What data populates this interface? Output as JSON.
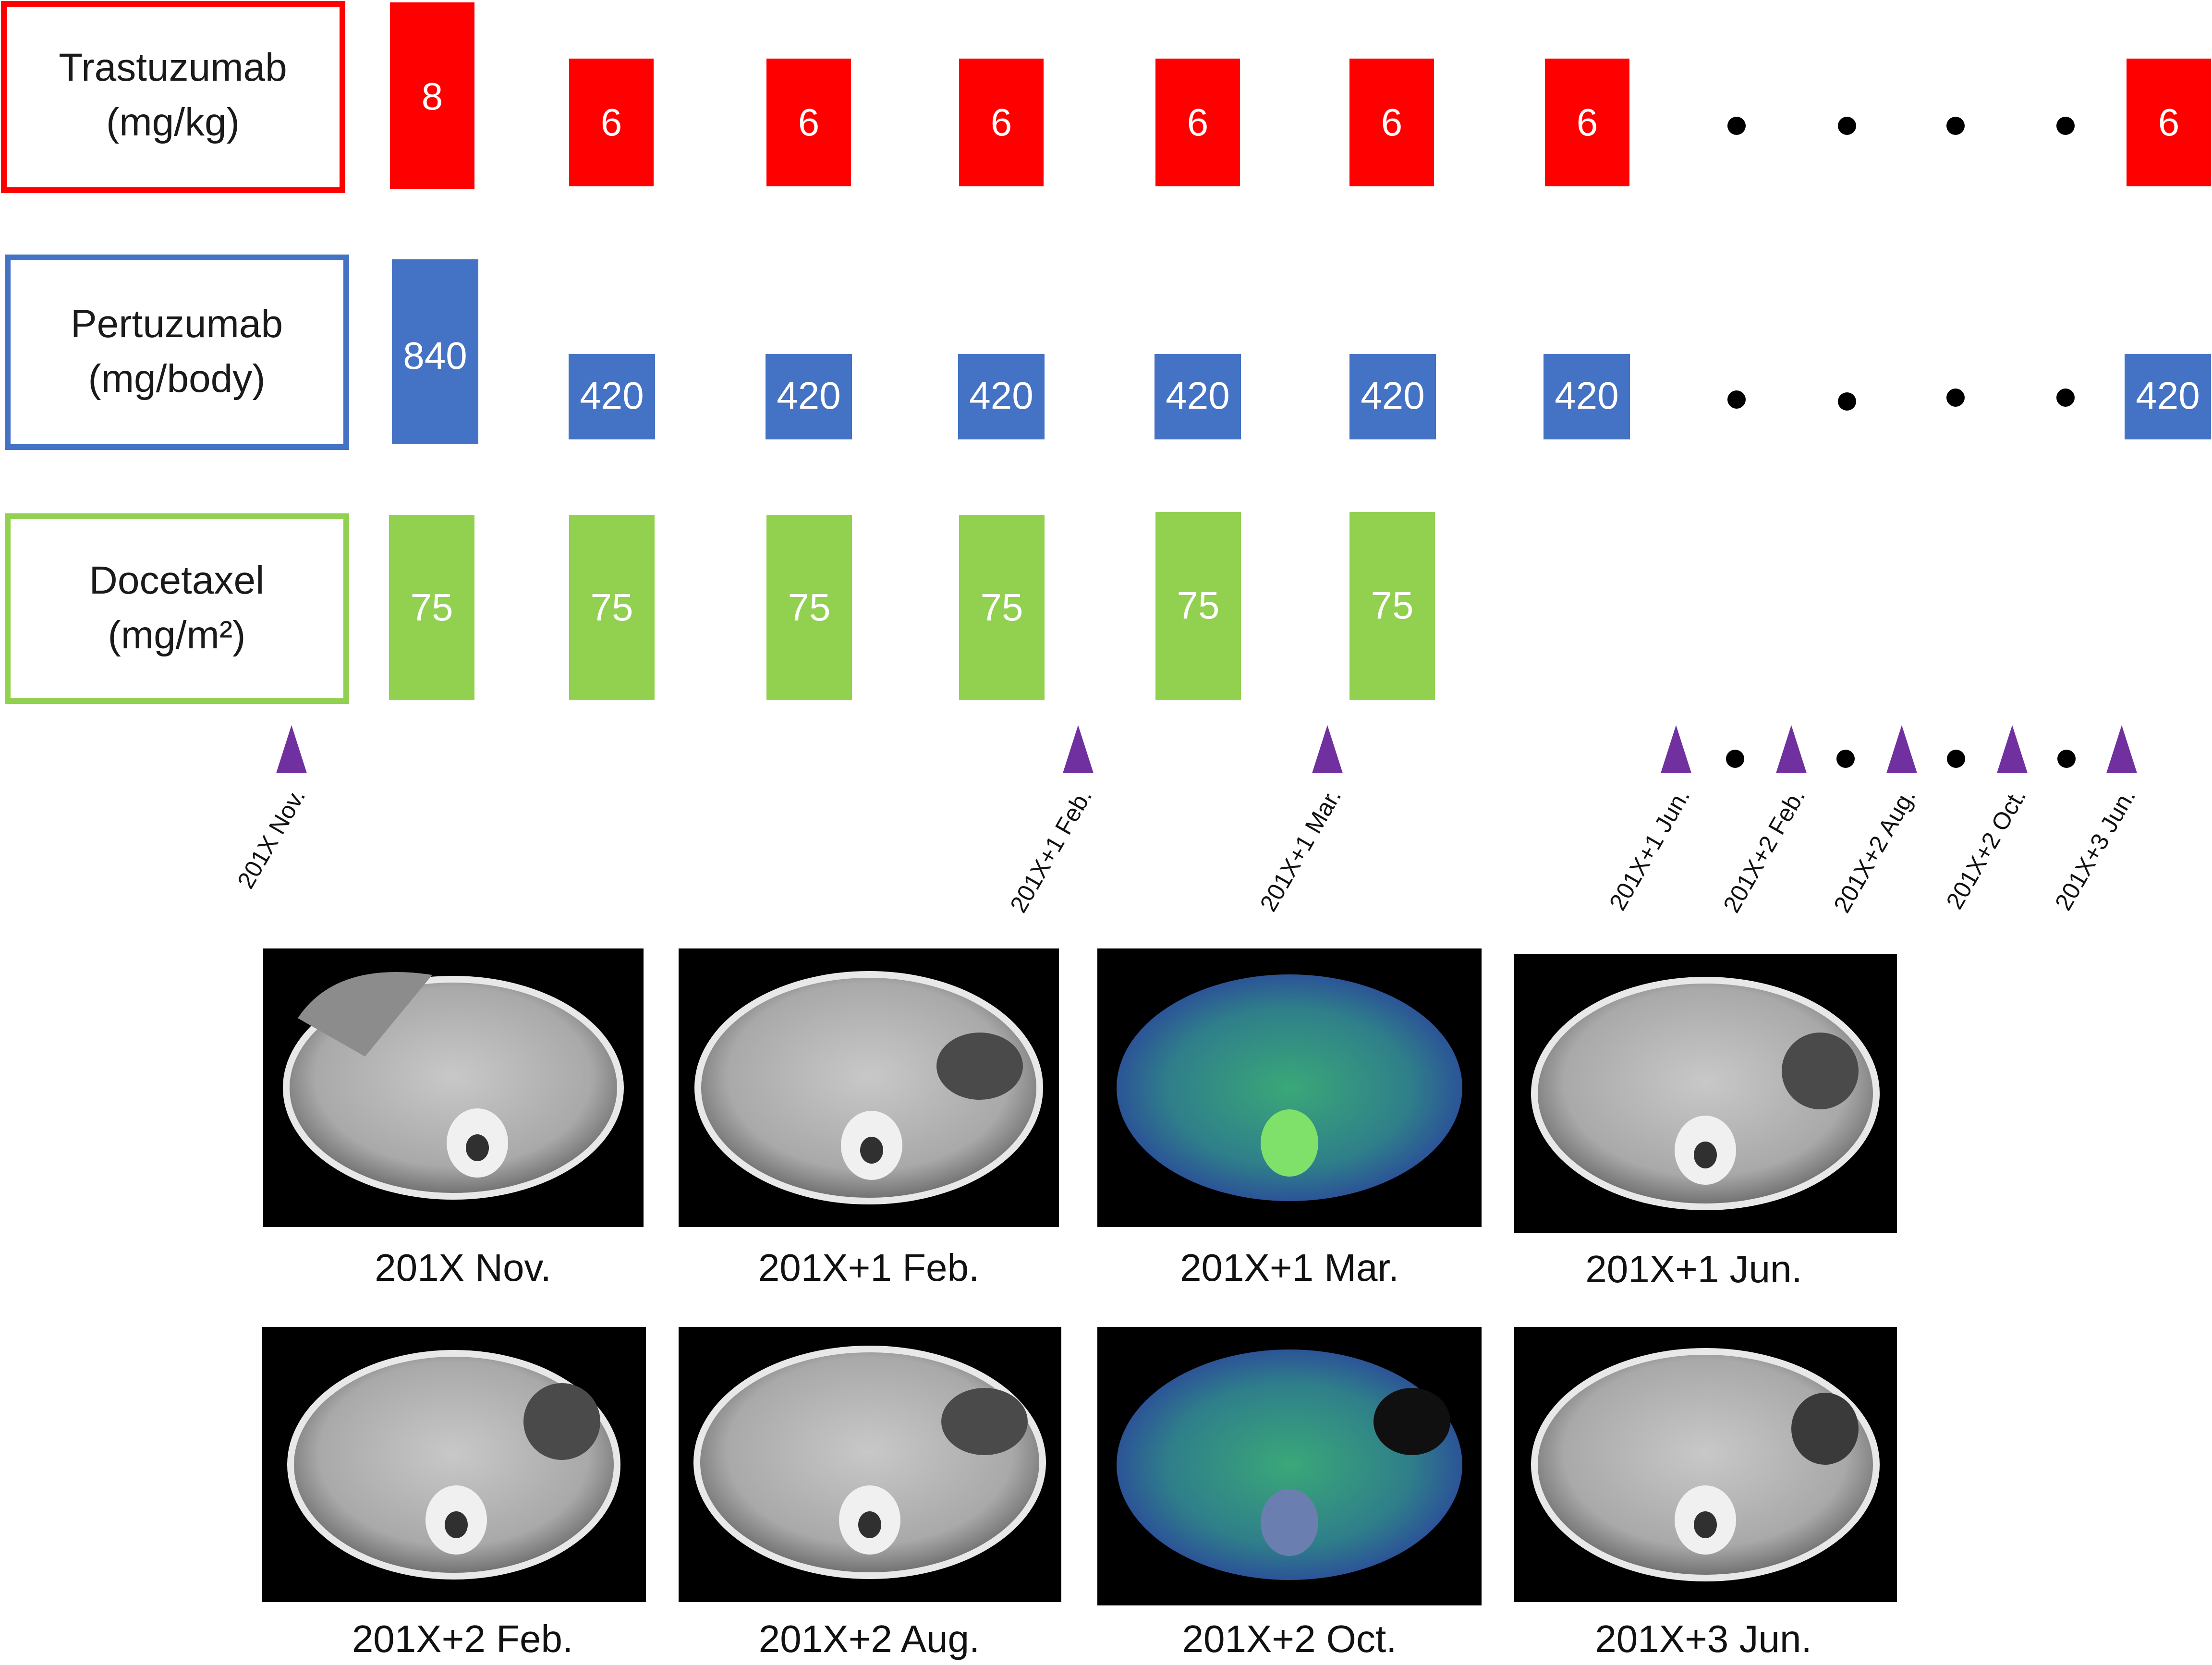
{
  "drugs": [
    {
      "name": "Trastuzumab",
      "unit": "(mg/kg)",
      "color": "#ff0000",
      "doses": [
        "8",
        "6",
        "6",
        "6",
        "6",
        "6",
        "6",
        "6"
      ]
    },
    {
      "name": "Pertuzumab",
      "unit": "(mg/body)",
      "color": "#4472c4",
      "doses": [
        "840",
        "420",
        "420",
        "420",
        "420",
        "420",
        "420",
        "420"
      ]
    },
    {
      "name": "Docetaxel",
      "unit": "(mg/m²)",
      "color": "#92d050",
      "doses": [
        "75",
        "75",
        "75",
        "75",
        "75",
        "75"
      ]
    }
  ],
  "timeline": {
    "marker_color": "#7030a0",
    "dates": [
      "201X Nov.",
      "201X+1 Feb.",
      "201X+1 Mar.",
      "201X+1 Jun.",
      "201X+2 Feb.",
      "201X+2 Aug.",
      "201X+2 Oct.",
      "201X+3 Jun."
    ]
  },
  "scans": [
    {
      "caption": "201X Nov.",
      "modality": "CT"
    },
    {
      "caption": "201X+1 Feb.",
      "modality": "CT"
    },
    {
      "caption": "201X+1 Mar.",
      "modality": "PET-CT"
    },
    {
      "caption": "201X+1 Jun.",
      "modality": "CT"
    },
    {
      "caption": "201X+2 Feb.",
      "modality": "CT"
    },
    {
      "caption": "201X+2 Aug.",
      "modality": "CT"
    },
    {
      "caption": "201X+2 Oct.",
      "modality": "PET-CT"
    },
    {
      "caption": "201X+3 Jun.",
      "modality": "CT"
    }
  ]
}
